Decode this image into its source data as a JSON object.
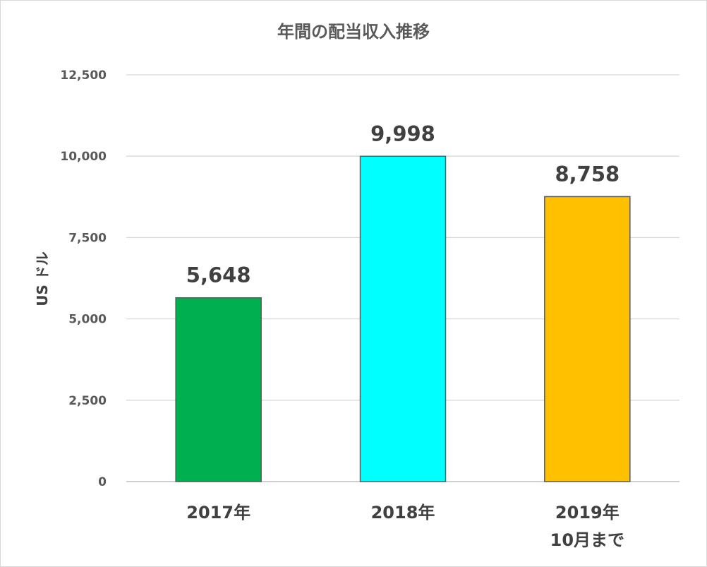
{
  "chart_data": {
    "type": "bar",
    "title": "年間の配当収入推移",
    "ylabel": "US ドル",
    "xlabel": "",
    "ylim": [
      0,
      12500
    ],
    "yticks": [
      0,
      2500,
      5000,
      7500,
      10000,
      12500
    ],
    "ytick_labels": [
      "0",
      "2,500",
      "5,000",
      "7,500",
      "10,000",
      "12,500"
    ],
    "categories": [
      "2017年",
      "2018年",
      "2019年\n10月まで"
    ],
    "values": [
      5648,
      9998,
      8758
    ],
    "data_labels": [
      "5,648",
      "9,998",
      "8,758"
    ],
    "bar_colors": [
      "#00b050",
      "#00ffff",
      "#ffc000"
    ],
    "grid": true,
    "legend": false
  }
}
